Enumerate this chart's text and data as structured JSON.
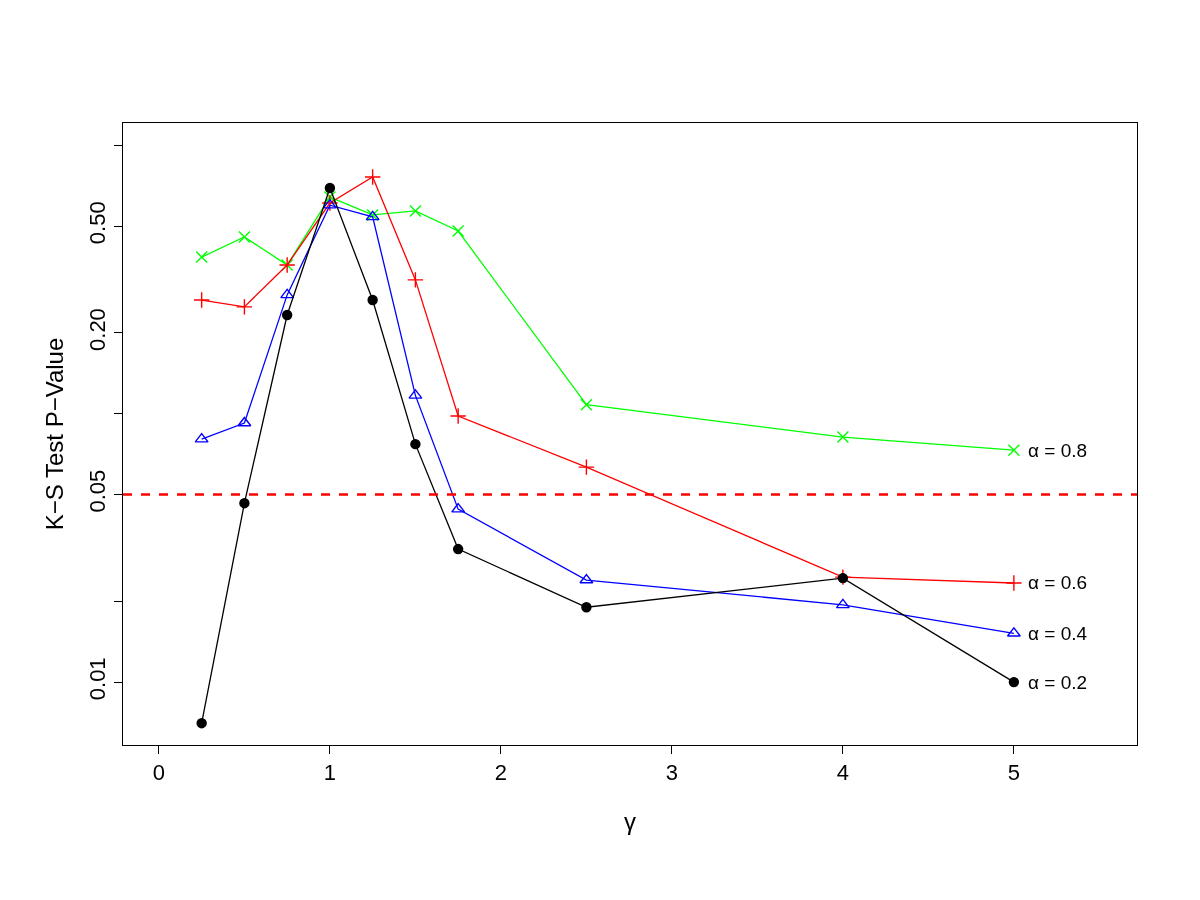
{
  "chart_data": {
    "type": "line",
    "xlabel": "γ",
    "ylabel": "K−S Test P−Value",
    "log": "y",
    "x": [
      0.25,
      0.5,
      0.75,
      1,
      1.25,
      1.5,
      1.75,
      2.5,
      4,
      5
    ],
    "series": [
      {
        "name": "α = 0.8",
        "color": "#00ff00",
        "marker": "x",
        "values": [
          0.383,
          0.455,
          0.358,
          0.641,
          0.55,
          0.569,
          0.479,
          0.108,
          0.0818,
          0.0731
        ]
      },
      {
        "name": "α = 0.6",
        "color": "#ff0000",
        "marker": "cross",
        "values": [
          0.265,
          0.25,
          0.358,
          0.609,
          0.761,
          0.315,
          0.098,
          0.0632,
          0.0246,
          0.0234
        ]
      },
      {
        "name": "α = 0.4",
        "color": "#0000ff",
        "marker": "triangle",
        "values": [
          0.0804,
          0.0923,
          0.277,
          0.598,
          0.541,
          0.117,
          0.0441,
          0.024,
          0.0194,
          0.0152
        ]
      },
      {
        "name": "α = 0.2",
        "color": "#000000",
        "marker": "circle",
        "values": [
          0.00703,
          0.0464,
          0.233,
          0.693,
          0.265,
          0.077,
          0.0313,
          0.019,
          0.0244,
          0.01
        ]
      }
    ],
    "xlim": [
      -0.21,
      5.72
    ],
    "xticks": [
      0,
      1,
      2,
      3,
      4,
      5
    ],
    "ylim": [
      0.00583,
      1.21
    ],
    "yticks": [
      0.01,
      {
        "value": 0.02,
        "label": null
      },
      0.05,
      {
        "value": 0.1,
        "label": null
      },
      {
        "value": 0.2,
        "label": "0.20"
      },
      {
        "value": 0.5,
        "label": "0.50"
      },
      {
        "value": 1,
        "label": null
      }
    ],
    "ref_lines": [
      {
        "axis": "y",
        "value": 0.05,
        "color": "#ff0000",
        "line_style": "dashed"
      }
    ],
    "legend": false
  }
}
